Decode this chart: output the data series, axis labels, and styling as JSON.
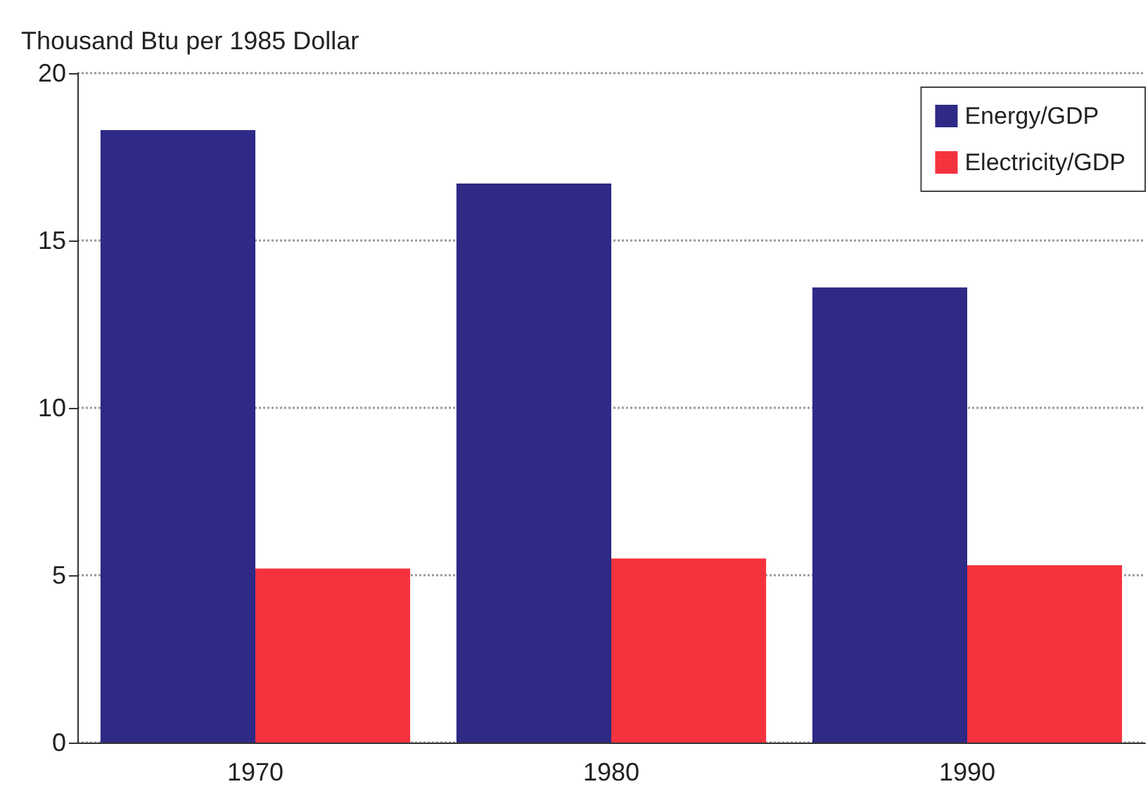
{
  "chart_data": {
    "type": "bar",
    "ylabel": "Thousand Btu per 1985 Dollar",
    "categories": [
      "1970",
      "1980",
      "1990"
    ],
    "series": [
      {
        "name": "Energy/GDP",
        "color": "#2e2a86",
        "values": [
          18.3,
          16.7,
          13.6
        ]
      },
      {
        "name": "Electricity/GDP",
        "color": "#f5333f",
        "values": [
          5.2,
          5.5,
          5.3
        ]
      }
    ],
    "ylim": [
      0,
      20
    ],
    "yticks": [
      0,
      5,
      10,
      15,
      20
    ],
    "grid": "y",
    "legend": "top right"
  }
}
